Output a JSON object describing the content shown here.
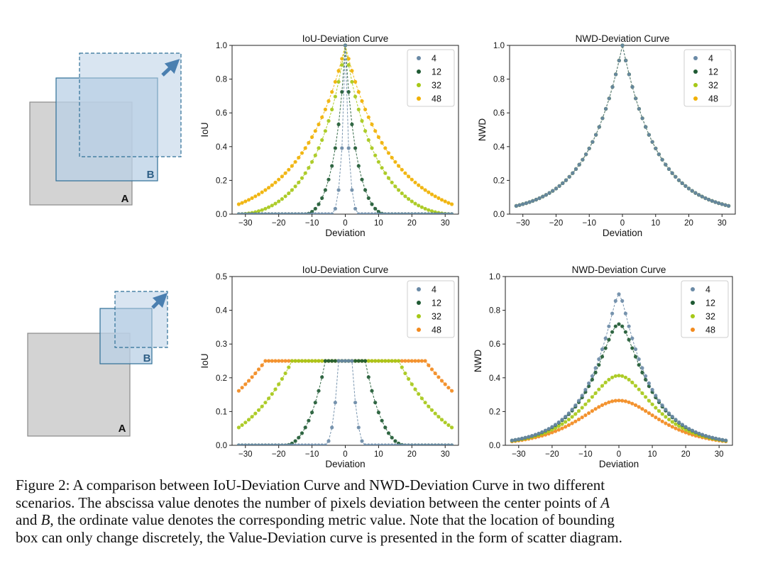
{
  "caption": {
    "line1": "Figure 2: A comparison between IoU-Deviation Curve and NWD-Deviation Curve in two different",
    "line2_a": "scenarios. The abscissa value denotes the number of pixels deviation between the center points of ",
    "var_a": "A",
    "line3_a": "and ",
    "var_b": "B",
    "line3_b": ", the ordinate value denotes the corresponding metric value. Note that the location of bounding",
    "line4": "box can only change discretely, the Value-Deviation curve is presented in the form of scatter diagram."
  },
  "diagrams": [
    {
      "label_a": "A",
      "label_b": "B"
    },
    {
      "label_a": "A",
      "label_b": "B"
    }
  ],
  "colors": {
    "s4": "#6a8aa6",
    "s12": "#1f5a33",
    "s32": "#a6c817",
    "s48": "#f0b000",
    "s48_row2": "#f28a1e",
    "box_a": "#d3d3d3",
    "box_b": "#b9d0e6",
    "box_stroke": "#2e6f96"
  },
  "chart_data": [
    {
      "type": "scatter",
      "metric": "iou_scenario1",
      "title": "IoU-Deviation Curve",
      "xlabel": "Deviation",
      "ylabel": "IoU",
      "xlim": [
        -34,
        34
      ],
      "ylim": [
        0,
        1
      ],
      "xticks": [
        -30,
        -20,
        -10,
        0,
        10,
        20,
        30
      ],
      "yticks": [
        0.0,
        0.2,
        0.4,
        0.6,
        0.8,
        1.0
      ],
      "xtick_labels": [
        "−30",
        "−20",
        "−10",
        "0",
        "10",
        "20",
        "30"
      ],
      "ytick_labels": [
        "0.0",
        "0.2",
        "0.4",
        "0.6",
        "0.8",
        "1.0"
      ],
      "x_range": [
        -32,
        32
      ],
      "step": 1,
      "series": [
        {
          "name": "4",
          "size": 4
        },
        {
          "name": "12",
          "size": 12
        },
        {
          "name": "32",
          "size": 32
        },
        {
          "name": "48",
          "size": 48
        }
      ],
      "legend": "top-right"
    },
    {
      "type": "scatter",
      "metric": "nwd_scenario1",
      "title": "NWD-Deviation Curve",
      "xlabel": "Deviation",
      "ylabel": "NWD",
      "xlim": [
        -34,
        34
      ],
      "ylim": [
        0,
        1
      ],
      "xticks": [
        -30,
        -20,
        -10,
        0,
        10,
        20,
        30
      ],
      "yticks": [
        0.0,
        0.2,
        0.4,
        0.6,
        0.8,
        1.0
      ],
      "xtick_labels": [
        "−30",
        "−20",
        "−10",
        "0",
        "10",
        "20",
        "30"
      ],
      "ytick_labels": [
        "0.0",
        "0.2",
        "0.4",
        "0.6",
        "0.8",
        "1.0"
      ],
      "x_range": [
        -32,
        32
      ],
      "step": 1,
      "series": [
        {
          "name": "4",
          "size": 4
        },
        {
          "name": "12",
          "size": 12
        },
        {
          "name": "32",
          "size": 32
        },
        {
          "name": "48",
          "size": 48
        }
      ],
      "legend": "top-right"
    },
    {
      "type": "scatter",
      "metric": "iou_scenario2",
      "title": "IoU-Deviation Curve",
      "xlabel": "Deviation",
      "ylabel": "IoU",
      "xlim": [
        -34,
        34
      ],
      "ylim": [
        0,
        0.5
      ],
      "xticks": [
        -30,
        -20,
        -10,
        0,
        10,
        20,
        30
      ],
      "yticks": [
        0.0,
        0.1,
        0.2,
        0.3,
        0.4,
        0.5
      ],
      "xtick_labels": [
        "−30",
        "−20",
        "−10",
        "0",
        "10",
        "20",
        "30"
      ],
      "ytick_labels": [
        "0.0",
        "0.1",
        "0.2",
        "0.3",
        "0.4",
        "0.5"
      ],
      "x_range": [
        -32,
        32
      ],
      "step": 1,
      "series": [
        {
          "name": "4",
          "size": 4
        },
        {
          "name": "12",
          "size": 12
        },
        {
          "name": "32",
          "size": 32
        },
        {
          "name": "48",
          "size": 48
        }
      ],
      "legend": "top-right"
    },
    {
      "type": "scatter",
      "metric": "nwd_scenario2",
      "title": "NWD-Deviation Curve",
      "xlabel": "Deviation",
      "ylabel": "NWD",
      "xlim": [
        -34,
        34
      ],
      "ylim": [
        0,
        1
      ],
      "xticks": [
        -30,
        -20,
        -10,
        0,
        10,
        20,
        30
      ],
      "yticks": [
        0.0,
        0.2,
        0.4,
        0.6,
        0.8,
        1.0
      ],
      "xtick_labels": [
        "−30",
        "−20",
        "−10",
        "0",
        "10",
        "20",
        "30"
      ],
      "ytick_labels": [
        "0.0",
        "0.2",
        "0.4",
        "0.6",
        "0.8",
        "1.0"
      ],
      "x_range": [
        -32,
        32
      ],
      "step": 1,
      "series": [
        {
          "name": "4",
          "size": 4
        },
        {
          "name": "12",
          "size": 12
        },
        {
          "name": "32",
          "size": 32
        },
        {
          "name": "48",
          "size": 48
        }
      ],
      "legend": "top-right"
    }
  ]
}
